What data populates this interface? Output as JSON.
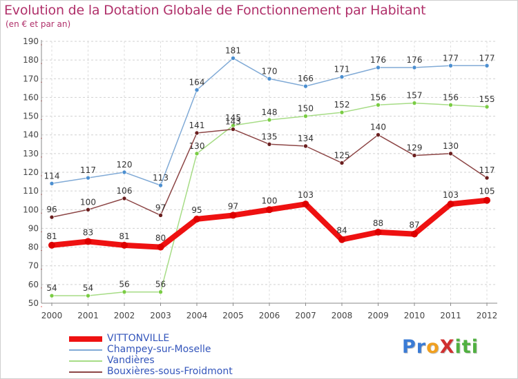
{
  "title": "Evolution de la Dotation Globale de Fonctionnement par Habitant",
  "subtitle": "(en € et par an)",
  "brand": {
    "text": "ProXiti",
    "letters": [
      {
        "ch": "P",
        "color": "#3a7bd5"
      },
      {
        "ch": "r",
        "color": "#3a7bd5"
      },
      {
        "ch": "o",
        "color": "#f0a020"
      },
      {
        "ch": "X",
        "color": "#d03030"
      },
      {
        "ch": "i",
        "color": "#50b040"
      },
      {
        "ch": "t",
        "color": "#50b040"
      },
      {
        "ch": "i",
        "color": "#50b040"
      }
    ]
  },
  "chart_data": {
    "type": "line",
    "title": "Evolution de la Dotation Globale de Fonctionnement par Habitant",
    "ylabel": "(en € et par an)",
    "xlabel": "",
    "x": [
      "2000",
      "2001",
      "2002",
      "2003",
      "2004",
      "2005",
      "2006",
      "2007",
      "2008",
      "2009",
      "2010",
      "2011",
      "2012"
    ],
    "yticks": [
      50,
      60,
      70,
      80,
      90,
      100,
      110,
      120,
      130,
      140,
      150,
      160,
      170,
      180,
      190
    ],
    "ylim": [
      50,
      190
    ],
    "grid": "horizontal-dashed",
    "legend": "bottom-left",
    "series": [
      {
        "name": "VITTONVILLE",
        "color": "#ee1111",
        "marker": "#dd0000",
        "thick": true,
        "values": [
          81,
          83,
          81,
          80,
          95,
          97,
          100,
          103,
          84,
          88,
          87,
          103,
          105
        ]
      },
      {
        "name": "Champey-sur-Moselle",
        "color": "#80aad6",
        "marker": "#4c8fd0",
        "thick": false,
        "values": [
          114,
          117,
          120,
          113,
          164,
          181,
          170,
          166,
          171,
          176,
          176,
          177,
          177
        ]
      },
      {
        "name": "Vandières",
        "color": "#a6dc85",
        "marker": "#7acc44",
        "thick": false,
        "values": [
          54,
          54,
          56,
          56,
          130,
          145,
          148,
          150,
          152,
          156,
          157,
          156,
          155
        ]
      },
      {
        "name": "Bouxières-sous-Froidmont",
        "color": "#8c4545",
        "marker": "#6b1f1f",
        "thick": false,
        "values": [
          96,
          100,
          106,
          97,
          141,
          143,
          135,
          134,
          125,
          140,
          129,
          130,
          117
        ]
      }
    ]
  }
}
